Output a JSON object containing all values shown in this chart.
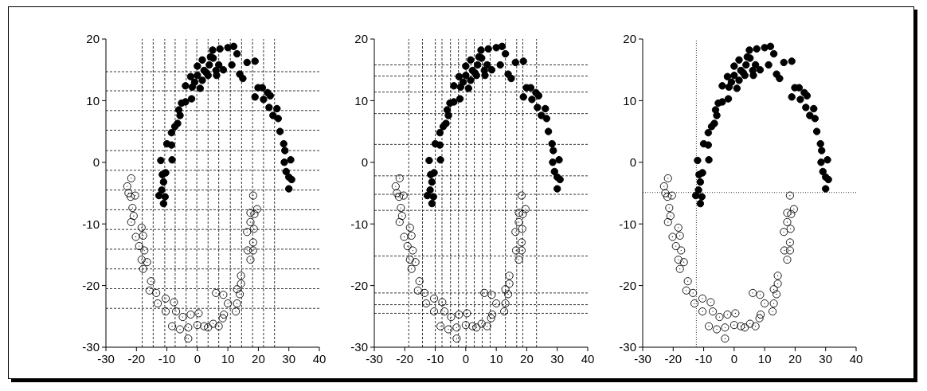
{
  "chart_data": [
    {
      "type": "scatter",
      "marker": "circle",
      "xlim": [
        -30,
        40
      ],
      "ylim": [
        -30,
        20
      ],
      "xticks": [
        -30,
        -20,
        -10,
        0,
        10,
        20,
        30,
        40
      ],
      "yticks": [
        -30,
        -20,
        -10,
        0,
        10,
        20
      ],
      "series": [
        {
          "color": "#000000",
          "x": [
            -12.0,
            -11.5,
            -10.4,
            -11.1,
            -12.6,
            -11.1,
            -10.6,
            -11.7,
            -8.3,
            -10.0,
            -8.5,
            -8.5,
            -7.4,
            -6.5,
            -5.7,
            -6.1,
            -5.2,
            -3.9,
            -1.9,
            -3.9,
            -1.7,
            -2.2,
            0,
            0.9,
            1.6,
            0,
            1.6,
            3.0,
            3.9,
            5.0,
            5.2,
            6.3,
            7.0,
            7.4,
            8.5,
            10.0,
            11.3,
            11.9,
            13.0,
            13.9,
            14.9,
            16.3,
            18.9,
            18.9,
            19.9,
            21.3,
            21.7,
            23.0,
            23.9,
            23.5,
            24.8,
            26.1,
            26.5,
            27.1,
            28.3,
            28.7,
            28.5,
            30.6,
            29.1,
            30.0,
            30.9,
            30.0,
            -0.9,
            2.2,
            3.5,
            4.3,
            6.1
          ],
          "values": [
            0.3,
            -2.0,
            -1.7,
            -3.2,
            -5.4,
            -6.7,
            -5.6,
            -4.5,
            0.4,
            3.0,
            2.8,
            4.8,
            5.8,
            6.3,
            7.6,
            8.5,
            9.6,
            9.8,
            10.3,
            12.4,
            12.2,
            13.9,
            14.1,
            12.0,
            13.3,
            15.6,
            16.6,
            14.5,
            15.8,
            18.2,
            16.9,
            14.1,
            15.8,
            18.4,
            15.0,
            18.6,
            15.8,
            18.8,
            17.6,
            14.3,
            13.6,
            16.2,
            16.4,
            10.6,
            12.1,
            12.1,
            10.2,
            11.3,
            10.8,
            8.9,
            7.6,
            8.7,
            7.1,
            5.0,
            3.0,
            1.9,
            0,
            0.4,
            -1.5,
            -2.4,
            -2.8,
            -4.3,
            13.0,
            14.9,
            14.1,
            17.1,
            14.9
          ]
        },
        {
          "color": "#000000",
          "x": [
            -21.7,
            -23.0,
            -22.6,
            -20.4,
            -21.9,
            -21.3,
            -20.9,
            -21.7,
            -18.3,
            -20.2,
            -17.8,
            -19.1,
            -17.4,
            -18.3,
            -16.5,
            -17.8,
            -15.2,
            -15.7,
            -13.5,
            -13.0,
            -10.4,
            -10.4,
            -7.7,
            -7.0,
            -8.3,
            -5.7,
            -4.8,
            -3.0,
            -3.0,
            -2.2,
            0.4,
            0,
            2.2,
            3.5,
            5.2,
            7.0,
            8.3,
            8.7,
            6.1,
            8.5,
            10.0,
            12.6,
            13.0,
            13.0,
            13.9,
            14.3,
            14.3,
            17.4,
            16.5,
            18.3,
            18.3,
            16.3,
            18.5,
            17.4,
            18.7,
            17.4,
            19.6,
            18.3
          ],
          "values": [
            -2.6,
            -3.9,
            -5.0,
            -5.4,
            -5.6,
            -7.4,
            -8.7,
            -9.7,
            -10.6,
            -12.1,
            -11.9,
            -13.6,
            -14.3,
            -15.8,
            -16.2,
            -17.3,
            -19.3,
            -20.8,
            -21.2,
            -22.9,
            -22.1,
            -24.2,
            -22.7,
            -24.2,
            -26.6,
            -27.1,
            -25.1,
            -26.8,
            -28.6,
            -24.7,
            -24.5,
            -26.4,
            -26.6,
            -26.8,
            -26.2,
            -26.6,
            -25.3,
            -24.7,
            -21.2,
            -21.5,
            -22.9,
            -24.2,
            -22.9,
            -20.6,
            -21.4,
            -19.7,
            -18.4,
            -15.8,
            -14.3,
            -14.3,
            -13.0,
            -11.3,
            -10.8,
            -9.7,
            -8.4,
            -8.2,
            -7.6,
            -5.4
          ]
        }
      ],
      "ref_lines": [
        {
          "axis": "x",
          "value": -18.1,
          "color": "#000000",
          "line_style": "dashed"
        },
        {
          "axis": "x",
          "value": -14.5,
          "color": "#000000",
          "line_style": "dashed"
        },
        {
          "axis": "x",
          "value": -10.7,
          "color": "#000000",
          "line_style": "dashed"
        },
        {
          "axis": "x",
          "value": -7.3,
          "color": "#000000",
          "line_style": "dashed"
        },
        {
          "axis": "x",
          "value": -3.7,
          "color": "#000000",
          "line_style": "dashed"
        },
        {
          "axis": "x",
          "value": -0.2,
          "color": "#000000",
          "line_style": "dashed"
        },
        {
          "axis": "x",
          "value": 3.5,
          "color": "#000000",
          "line_style": "dashed"
        },
        {
          "axis": "x",
          "value": 7.0,
          "color": "#000000",
          "line_style": "dashed"
        },
        {
          "axis": "x",
          "value": 10.8,
          "color": "#000000",
          "line_style": "dashed"
        },
        {
          "axis": "x",
          "value": 14.5,
          "color": "#000000",
          "line_style": "dashed"
        },
        {
          "axis": "x",
          "value": 18.1,
          "color": "#000000",
          "line_style": "dashed"
        },
        {
          "axis": "x",
          "value": 21.7,
          "color": "#000000",
          "line_style": "dashed"
        },
        {
          "axis": "x",
          "value": 25.3,
          "color": "#000000",
          "line_style": "dashed"
        },
        {
          "axis": "y",
          "value": 14.7,
          "color": "#000000",
          "line_style": "dashed"
        },
        {
          "axis": "y",
          "value": 11.6,
          "color": "#000000",
          "line_style": "dashed"
        },
        {
          "axis": "y",
          "value": 8.4,
          "color": "#000000",
          "line_style": "dashed"
        },
        {
          "axis": "y",
          "value": 5.2,
          "color": "#000000",
          "line_style": "dashed"
        },
        {
          "axis": "y",
          "value": 1.9,
          "color": "#000000",
          "line_style": "dashed"
        },
        {
          "axis": "y",
          "value": -1.3,
          "color": "#000000",
          "line_style": "dashed"
        },
        {
          "axis": "y",
          "value": -4.5,
          "color": "#000000",
          "line_style": "dashed"
        },
        {
          "axis": "y",
          "value": -7.7,
          "color": "#000000",
          "line_style": "dashed"
        },
        {
          "axis": "y",
          "value": -10.9,
          "color": "#000000",
          "line_style": "dashed"
        },
        {
          "axis": "y",
          "value": -14.1,
          "color": "#000000",
          "line_style": "dashed"
        },
        {
          "axis": "y",
          "value": -17.3,
          "color": "#000000",
          "line_style": "dashed"
        },
        {
          "axis": "y",
          "value": -20.5,
          "color": "#000000",
          "line_style": "dashed"
        },
        {
          "axis": "y",
          "value": -23.7,
          "color": "#000000",
          "line_style": "dashed"
        }
      ]
    },
    {
      "type": "scatter",
      "marker": "circle",
      "xlim": [
        -30,
        40
      ],
      "ylim": [
        -30,
        20
      ],
      "xticks": [
        -30,
        -20,
        -10,
        0,
        10,
        20,
        30,
        40
      ],
      "yticks": [
        -30,
        -20,
        -10,
        0,
        10,
        20
      ],
      "series": [
        {
          "color": "#000000",
          "x": [
            -12.0,
            -11.5,
            -10.4,
            -11.1,
            -12.6,
            -11.1,
            -10.6,
            -11.7,
            -8.3,
            -10.0,
            -8.5,
            -8.5,
            -7.4,
            -6.5,
            -5.7,
            -6.1,
            -5.2,
            -3.9,
            -1.9,
            -3.9,
            -1.7,
            -2.2,
            0,
            0.9,
            1.6,
            0,
            1.6,
            3.0,
            3.9,
            5.0,
            5.2,
            6.3,
            7.0,
            7.4,
            8.5,
            10.0,
            11.3,
            11.9,
            13.0,
            13.9,
            14.9,
            16.3,
            18.9,
            18.9,
            19.9,
            21.3,
            21.7,
            23.0,
            23.9,
            23.5,
            24.8,
            26.1,
            26.5,
            27.1,
            28.3,
            28.7,
            28.5,
            30.6,
            29.1,
            30.0,
            30.9,
            30.0,
            -0.9,
            2.2,
            3.5,
            4.3,
            6.1
          ],
          "values": [
            0.3,
            -2.0,
            -1.7,
            -3.2,
            -5.4,
            -6.7,
            -5.6,
            -4.5,
            0.4,
            3.0,
            2.8,
            4.8,
            5.8,
            6.3,
            7.6,
            8.5,
            9.6,
            9.8,
            10.3,
            12.4,
            12.2,
            13.9,
            14.1,
            12.0,
            13.3,
            15.6,
            16.6,
            14.5,
            15.8,
            18.2,
            16.9,
            14.1,
            15.8,
            18.4,
            15.0,
            18.6,
            15.8,
            18.8,
            17.6,
            14.3,
            13.6,
            16.2,
            16.4,
            10.6,
            12.1,
            12.1,
            10.2,
            11.3,
            10.8,
            8.9,
            7.6,
            8.7,
            7.1,
            5.0,
            3.0,
            1.9,
            0,
            0.4,
            -1.5,
            -2.4,
            -2.8,
            -4.3,
            13.0,
            14.9,
            14.1,
            17.1,
            14.9
          ]
        },
        {
          "color": "#000000",
          "x": [
            -21.7,
            -23.0,
            -22.6,
            -20.4,
            -21.9,
            -21.3,
            -20.9,
            -21.7,
            -18.3,
            -20.2,
            -17.8,
            -19.1,
            -17.4,
            -18.3,
            -16.5,
            -17.8,
            -15.2,
            -15.7,
            -13.5,
            -13.0,
            -10.4,
            -10.4,
            -7.7,
            -7.0,
            -8.3,
            -5.7,
            -4.8,
            -3.0,
            -3.0,
            -2.2,
            0.4,
            0,
            2.2,
            3.5,
            5.2,
            7.0,
            8.3,
            8.7,
            6.1,
            8.5,
            10.0,
            12.6,
            13.0,
            13.0,
            13.9,
            14.3,
            14.3,
            17.4,
            16.5,
            18.3,
            18.3,
            16.3,
            18.5,
            17.4,
            18.7,
            17.4,
            19.6,
            18.3
          ],
          "values": [
            -2.6,
            -3.9,
            -5.0,
            -5.4,
            -5.6,
            -7.4,
            -8.7,
            -9.7,
            -10.6,
            -12.1,
            -11.9,
            -13.6,
            -14.3,
            -15.8,
            -16.2,
            -17.3,
            -19.3,
            -20.8,
            -21.2,
            -22.9,
            -22.1,
            -24.2,
            -22.7,
            -24.2,
            -26.6,
            -27.1,
            -25.1,
            -26.8,
            -28.6,
            -24.7,
            -24.5,
            -26.4,
            -26.6,
            -26.8,
            -26.2,
            -26.6,
            -25.3,
            -24.7,
            -21.2,
            -21.5,
            -22.9,
            -24.2,
            -22.9,
            -20.6,
            -21.4,
            -19.7,
            -18.4,
            -15.8,
            -14.3,
            -14.3,
            -13.0,
            -11.3,
            -10.8,
            -9.7,
            -8.4,
            -8.2,
            -7.6,
            -5.4
          ]
        }
      ],
      "ref_lines": [
        {
          "axis": "x",
          "value": -18.7,
          "color": "#000000",
          "line_style": "dashed"
        },
        {
          "axis": "x",
          "value": -14.2,
          "color": "#000000",
          "line_style": "dashed"
        },
        {
          "axis": "x",
          "value": -10.0,
          "color": "#000000",
          "line_style": "dashed"
        },
        {
          "axis": "x",
          "value": -7.8,
          "color": "#000000",
          "line_style": "dashed"
        },
        {
          "axis": "x",
          "value": -5.0,
          "color": "#000000",
          "line_style": "dashed"
        },
        {
          "axis": "x",
          "value": -2.4,
          "color": "#000000",
          "line_style": "dashed"
        },
        {
          "axis": "x",
          "value": 0.1,
          "color": "#000000",
          "line_style": "dashed"
        },
        {
          "axis": "x",
          "value": 2.8,
          "color": "#000000",
          "line_style": "dashed"
        },
        {
          "axis": "x",
          "value": 5.4,
          "color": "#000000",
          "line_style": "dashed"
        },
        {
          "axis": "x",
          "value": 8.0,
          "color": "#000000",
          "line_style": "dashed"
        },
        {
          "axis": "x",
          "value": 13.0,
          "color": "#000000",
          "line_style": "dashed"
        },
        {
          "axis": "x",
          "value": 16.7,
          "color": "#000000",
          "line_style": "dashed"
        },
        {
          "axis": "x",
          "value": 18.7,
          "color": "#000000",
          "line_style": "dashed"
        },
        {
          "axis": "x",
          "value": 23.2,
          "color": "#000000",
          "line_style": "dashed"
        },
        {
          "axis": "y",
          "value": 15.8,
          "color": "#000000",
          "line_style": "dashed"
        },
        {
          "axis": "y",
          "value": 14.0,
          "color": "#000000",
          "line_style": "dashed"
        },
        {
          "axis": "y",
          "value": 11.4,
          "color": "#000000",
          "line_style": "dashed"
        },
        {
          "axis": "y",
          "value": 7.9,
          "color": "#000000",
          "line_style": "dashed"
        },
        {
          "axis": "y",
          "value": 2.9,
          "color": "#000000",
          "line_style": "dashed"
        },
        {
          "axis": "y",
          "value": -2.2,
          "color": "#000000",
          "line_style": "dashed"
        },
        {
          "axis": "y",
          "value": -5.2,
          "color": "#000000",
          "line_style": "dashed"
        },
        {
          "axis": "y",
          "value": -7.8,
          "color": "#000000",
          "line_style": "dashed"
        },
        {
          "axis": "y",
          "value": -15.2,
          "color": "#000000",
          "line_style": "dashed"
        },
        {
          "axis": "y",
          "value": -21.2,
          "color": "#000000",
          "line_style": "dashed"
        },
        {
          "axis": "y",
          "value": -23.1,
          "color": "#000000",
          "line_style": "dashed"
        },
        {
          "axis": "y",
          "value": -24.5,
          "color": "#000000",
          "line_style": "dashed"
        }
      ]
    },
    {
      "type": "scatter",
      "marker": "circle",
      "xlim": [
        -30,
        40
      ],
      "ylim": [
        -30,
        20
      ],
      "xticks": [
        -30,
        -20,
        -10,
        0,
        10,
        20,
        30,
        40
      ],
      "yticks": [
        -30,
        -20,
        -10,
        0,
        10,
        20
      ],
      "series": [
        {
          "color": "#000000",
          "x": [
            -12.0,
            -11.5,
            -10.4,
            -11.1,
            -12.6,
            -11.1,
            -10.6,
            -11.7,
            -8.3,
            -10.0,
            -8.5,
            -8.5,
            -7.4,
            -6.5,
            -5.7,
            -6.1,
            -5.2,
            -3.9,
            -1.9,
            -3.9,
            -1.7,
            -2.2,
            0,
            0.9,
            1.6,
            0,
            1.6,
            3.0,
            3.9,
            5.0,
            5.2,
            6.3,
            7.0,
            7.4,
            8.5,
            10.0,
            11.3,
            11.9,
            13.0,
            13.9,
            14.9,
            16.3,
            18.9,
            18.9,
            19.9,
            21.3,
            21.7,
            23.0,
            23.9,
            23.5,
            24.8,
            26.1,
            26.5,
            27.1,
            28.3,
            28.7,
            28.5,
            30.6,
            29.1,
            30.0,
            30.9,
            30.0,
            -0.9,
            2.2,
            3.5,
            4.3,
            6.1
          ],
          "values": [
            0.3,
            -2.0,
            -1.7,
            -3.2,
            -5.4,
            -6.7,
            -5.6,
            -4.5,
            0.4,
            3.0,
            2.8,
            4.8,
            5.8,
            6.3,
            7.6,
            8.5,
            9.6,
            9.8,
            10.3,
            12.4,
            12.2,
            13.9,
            14.1,
            12.0,
            13.3,
            15.6,
            16.6,
            14.5,
            15.8,
            18.2,
            16.9,
            14.1,
            15.8,
            18.4,
            15.0,
            18.6,
            15.8,
            18.8,
            17.6,
            14.3,
            13.6,
            16.2,
            16.4,
            10.6,
            12.1,
            12.1,
            10.2,
            11.3,
            10.8,
            8.9,
            7.6,
            8.7,
            7.1,
            5.0,
            3.0,
            1.9,
            0,
            0.4,
            -1.5,
            -2.4,
            -2.8,
            -4.3,
            13.0,
            14.9,
            14.1,
            17.1,
            14.9
          ]
        },
        {
          "color": "#000000",
          "x": [
            -21.7,
            -23.0,
            -22.6,
            -20.4,
            -21.9,
            -21.3,
            -20.9,
            -21.7,
            -18.3,
            -20.2,
            -17.8,
            -19.1,
            -17.4,
            -18.3,
            -16.5,
            -17.8,
            -15.2,
            -15.7,
            -13.5,
            -13.0,
            -10.4,
            -10.4,
            -7.7,
            -7.0,
            -8.3,
            -5.7,
            -4.8,
            -3.0,
            -3.0,
            -2.2,
            0.4,
            0,
            2.2,
            3.5,
            5.2,
            7.0,
            8.3,
            8.7,
            6.1,
            8.5,
            10.0,
            12.6,
            13.0,
            13.0,
            13.9,
            14.3,
            14.3,
            17.4,
            16.5,
            18.3,
            18.3,
            16.3,
            18.5,
            17.4,
            18.7,
            17.4,
            19.6,
            18.3
          ],
          "values": [
            -2.6,
            -3.9,
            -5.0,
            -5.4,
            -5.6,
            -7.4,
            -8.7,
            -9.7,
            -10.6,
            -12.1,
            -11.9,
            -13.6,
            -14.3,
            -15.8,
            -16.2,
            -17.3,
            -19.3,
            -20.8,
            -21.2,
            -22.9,
            -22.1,
            -24.2,
            -22.7,
            -24.2,
            -26.6,
            -27.1,
            -25.1,
            -26.8,
            -28.6,
            -24.7,
            -24.5,
            -26.4,
            -26.6,
            -26.8,
            -26.2,
            -26.6,
            -25.3,
            -24.7,
            -21.2,
            -21.5,
            -22.9,
            -24.2,
            -22.9,
            -20.6,
            -21.4,
            -19.7,
            -18.4,
            -15.8,
            -14.3,
            -14.3,
            -13.0,
            -11.3,
            -10.8,
            -9.7,
            -8.4,
            -8.2,
            -7.6,
            -5.4
          ]
        }
      ],
      "ref_lines": [
        {
          "axis": "x",
          "value": -12.4,
          "color": "#000000",
          "line_style": "dotted"
        },
        {
          "axis": "y",
          "value": -4.9,
          "color": "#000000",
          "line_style": "dotted"
        }
      ]
    }
  ]
}
